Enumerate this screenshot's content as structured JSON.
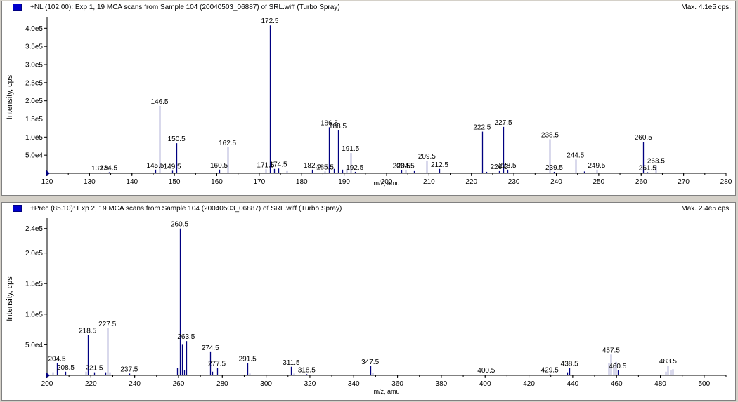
{
  "panels": [
    {
      "title": "+NL (102.00): Exp 1, 19 MCA scans from Sample 104 (20040503_06887) of SRL.wiff (Turbo Spray)",
      "max_label": "Max. 4.1e5 cps."
    },
    {
      "title": "+Prec (85.10): Exp 2, 19 MCA scans from Sample 104 (20040503_06887) of SRL.wiff (Turbo Spray)",
      "max_label": "Max. 2.4e5 cps."
    }
  ],
  "chart_data": [
    {
      "type": "bar",
      "xlabel": "m/z, amu",
      "ylabel": "Intensity, cps",
      "xlim": [
        120,
        280
      ],
      "ylim": [
        0,
        420000
      ],
      "x_ticks": [
        120,
        130,
        140,
        150,
        160,
        170,
        180,
        190,
        200,
        210,
        220,
        230,
        240,
        250,
        260,
        270,
        280
      ],
      "y_ticks": [
        {
          "value": 50000,
          "label": "5.0e4"
        },
        {
          "value": 100000,
          "label": "1.0e5"
        },
        {
          "value": 150000,
          "label": "1.5e5"
        },
        {
          "value": 200000,
          "label": "2.0e5"
        },
        {
          "value": 250000,
          "label": "2.5e5"
        },
        {
          "value": 300000,
          "label": "3.0e5"
        },
        {
          "value": 350000,
          "label": "3.5e5"
        },
        {
          "value": 400000,
          "label": "4.0e5"
        }
      ],
      "peaks": [
        {
          "x": 132.5,
          "y": 2000
        },
        {
          "x": 134.5,
          "y": 3000
        },
        {
          "x": 145.5,
          "y": 10000
        },
        {
          "x": 146.5,
          "y": 186000
        },
        {
          "x": 149.5,
          "y": 7000
        },
        {
          "x": 150.5,
          "y": 83000
        },
        {
          "x": 160.5,
          "y": 10000
        },
        {
          "x": 162.5,
          "y": 72000
        },
        {
          "x": 171.5,
          "y": 11000
        },
        {
          "x": 172.5,
          "y": 408000
        },
        {
          "x": 173.5,
          "y": 12000
        },
        {
          "x": 174.5,
          "y": 13000
        },
        {
          "x": 176.5,
          "y": 6000
        },
        {
          "x": 182.5,
          "y": 10000
        },
        {
          "x": 185.5,
          "y": 5000
        },
        {
          "x": 186.5,
          "y": 127000
        },
        {
          "x": 187.5,
          "y": 12000
        },
        {
          "x": 188.5,
          "y": 118000
        },
        {
          "x": 189.5,
          "y": 10000
        },
        {
          "x": 190.5,
          "y": 12000
        },
        {
          "x": 191.5,
          "y": 56000
        },
        {
          "x": 192.5,
          "y": 4000
        },
        {
          "x": 203.5,
          "y": 9000
        },
        {
          "x": 204.5,
          "y": 9000
        },
        {
          "x": 206.5,
          "y": 6000
        },
        {
          "x": 209.5,
          "y": 35000
        },
        {
          "x": 212.5,
          "y": 12000
        },
        {
          "x": 222.5,
          "y": 115000
        },
        {
          "x": 223.5,
          "y": 4000
        },
        {
          "x": 226.5,
          "y": 6000
        },
        {
          "x": 227.5,
          "y": 128000
        },
        {
          "x": 228.5,
          "y": 10000
        },
        {
          "x": 238.5,
          "y": 94000
        },
        {
          "x": 239.5,
          "y": 4000
        },
        {
          "x": 244.5,
          "y": 38000
        },
        {
          "x": 246.5,
          "y": 5000
        },
        {
          "x": 249.5,
          "y": 10000
        },
        {
          "x": 260.5,
          "y": 87000
        },
        {
          "x": 261.5,
          "y": 3000
        },
        {
          "x": 263.5,
          "y": 22000
        }
      ],
      "peak_labels": [
        {
          "x": 132.5,
          "text": "132.5"
        },
        {
          "x": 134.5,
          "text": "134.5"
        },
        {
          "x": 145.5,
          "text": "145.5"
        },
        {
          "x": 146.5,
          "text": "146.5"
        },
        {
          "x": 149.5,
          "text": "149.5"
        },
        {
          "x": 150.5,
          "text": "150.5"
        },
        {
          "x": 160.5,
          "text": "160.5"
        },
        {
          "x": 162.5,
          "text": "162.5"
        },
        {
          "x": 171.5,
          "text": "171.5"
        },
        {
          "x": 172.5,
          "text": "172.5"
        },
        {
          "x": 174.5,
          "text": "174.5"
        },
        {
          "x": 182.5,
          "text": "182.5"
        },
        {
          "x": 185.5,
          "text": "185.5"
        },
        {
          "x": 186.5,
          "text": "186.5"
        },
        {
          "x": 188.5,
          "text": "188.5"
        },
        {
          "x": 191.5,
          "text": "191.5"
        },
        {
          "x": 192.5,
          "text": "192.5"
        },
        {
          "x": 203.5,
          "text": "203.5"
        },
        {
          "x": 204.5,
          "text": "204.5"
        },
        {
          "x": 209.5,
          "text": "209.5"
        },
        {
          "x": 212.5,
          "text": "212.5"
        },
        {
          "x": 222.5,
          "text": "222.5"
        },
        {
          "x": 226.5,
          "text": "226.5"
        },
        {
          "x": 227.5,
          "text": "227.5"
        },
        {
          "x": 228.5,
          "text": "228.5"
        },
        {
          "x": 238.5,
          "text": "238.5"
        },
        {
          "x": 239.5,
          "text": "239.5"
        },
        {
          "x": 244.5,
          "text": "244.5"
        },
        {
          "x": 249.5,
          "text": "249.5"
        },
        {
          "x": 260.5,
          "text": "260.5"
        },
        {
          "x": 261.5,
          "text": "261.5"
        },
        {
          "x": 263.5,
          "text": "263.5"
        }
      ]
    },
    {
      "type": "bar",
      "xlabel": "m/z, amu",
      "ylabel": "Intensity, cps",
      "xlim": [
        200,
        510
      ],
      "ylim": [
        0,
        250000
      ],
      "x_ticks": [
        200,
        220,
        240,
        260,
        280,
        300,
        320,
        340,
        360,
        380,
        400,
        420,
        440,
        460,
        480,
        500
      ],
      "y_ticks": [
        {
          "value": 50000,
          "label": "5.0e4"
        },
        {
          "value": 100000,
          "label": "1.0e5"
        },
        {
          "value": 150000,
          "label": "1.5e5"
        },
        {
          "value": 200000,
          "label": "2.0e5"
        },
        {
          "value": 240000,
          "label": "2.4e5"
        }
      ],
      "peaks": [
        {
          "x": 202.5,
          "y": 5000
        },
        {
          "x": 204.5,
          "y": 20000
        },
        {
          "x": 208.5,
          "y": 6000
        },
        {
          "x": 217.5,
          "y": 6000
        },
        {
          "x": 218.5,
          "y": 66000
        },
        {
          "x": 221.5,
          "y": 5000
        },
        {
          "x": 226.5,
          "y": 5000
        },
        {
          "x": 227.5,
          "y": 77000
        },
        {
          "x": 228.5,
          "y": 5000
        },
        {
          "x": 237.5,
          "y": 3000
        },
        {
          "x": 259.5,
          "y": 12000
        },
        {
          "x": 260.5,
          "y": 240000
        },
        {
          "x": 261.5,
          "y": 50000
        },
        {
          "x": 262.5,
          "y": 8000
        },
        {
          "x": 263.5,
          "y": 56000
        },
        {
          "x": 274.5,
          "y": 38000
        },
        {
          "x": 275.5,
          "y": 6000
        },
        {
          "x": 277.5,
          "y": 12000
        },
        {
          "x": 291.5,
          "y": 20000
        },
        {
          "x": 292.5,
          "y": 3000
        },
        {
          "x": 311.5,
          "y": 14000
        },
        {
          "x": 312.5,
          "y": 3000
        },
        {
          "x": 318.5,
          "y": 2000
        },
        {
          "x": 347.5,
          "y": 15000
        },
        {
          "x": 348.5,
          "y": 4000
        },
        {
          "x": 400.5,
          "y": 1000
        },
        {
          "x": 429.5,
          "y": 2000
        },
        {
          "x": 437.5,
          "y": 5000
        },
        {
          "x": 438.5,
          "y": 12000
        },
        {
          "x": 456.5,
          "y": 20000
        },
        {
          "x": 457.5,
          "y": 34000
        },
        {
          "x": 458.5,
          "y": 14000
        },
        {
          "x": 459.5,
          "y": 22000
        },
        {
          "x": 460.5,
          "y": 8000
        },
        {
          "x": 482.5,
          "y": 6000
        },
        {
          "x": 483.5,
          "y": 16000
        },
        {
          "x": 484.5,
          "y": 8000
        },
        {
          "x": 485.5,
          "y": 10000
        }
      ],
      "peak_labels": [
        {
          "x": 204.5,
          "text": "204.5"
        },
        {
          "x": 208.5,
          "text": "208.5"
        },
        {
          "x": 218.5,
          "text": "218.5"
        },
        {
          "x": 221.5,
          "text": "221.5"
        },
        {
          "x": 227.5,
          "text": "227.5"
        },
        {
          "x": 237.5,
          "text": "237.5"
        },
        {
          "x": 260.5,
          "text": "260.5"
        },
        {
          "x": 263.5,
          "text": "263.5"
        },
        {
          "x": 274.5,
          "text": "274.5"
        },
        {
          "x": 277.5,
          "text": "277.5"
        },
        {
          "x": 291.5,
          "text": "291.5"
        },
        {
          "x": 311.5,
          "text": "311.5"
        },
        {
          "x": 318.5,
          "text": "318.5"
        },
        {
          "x": 347.5,
          "text": "347.5"
        },
        {
          "x": 400.5,
          "text": "400.5"
        },
        {
          "x": 429.5,
          "text": "429.5"
        },
        {
          "x": 438.5,
          "text": "438.5"
        },
        {
          "x": 457.5,
          "text": "457.5"
        },
        {
          "x": 460.5,
          "text": "460.5"
        },
        {
          "x": 483.5,
          "text": "483.5"
        }
      ]
    }
  ],
  "colors": {
    "peak": "#000080",
    "axis": "#000000",
    "marker": "#000080"
  }
}
